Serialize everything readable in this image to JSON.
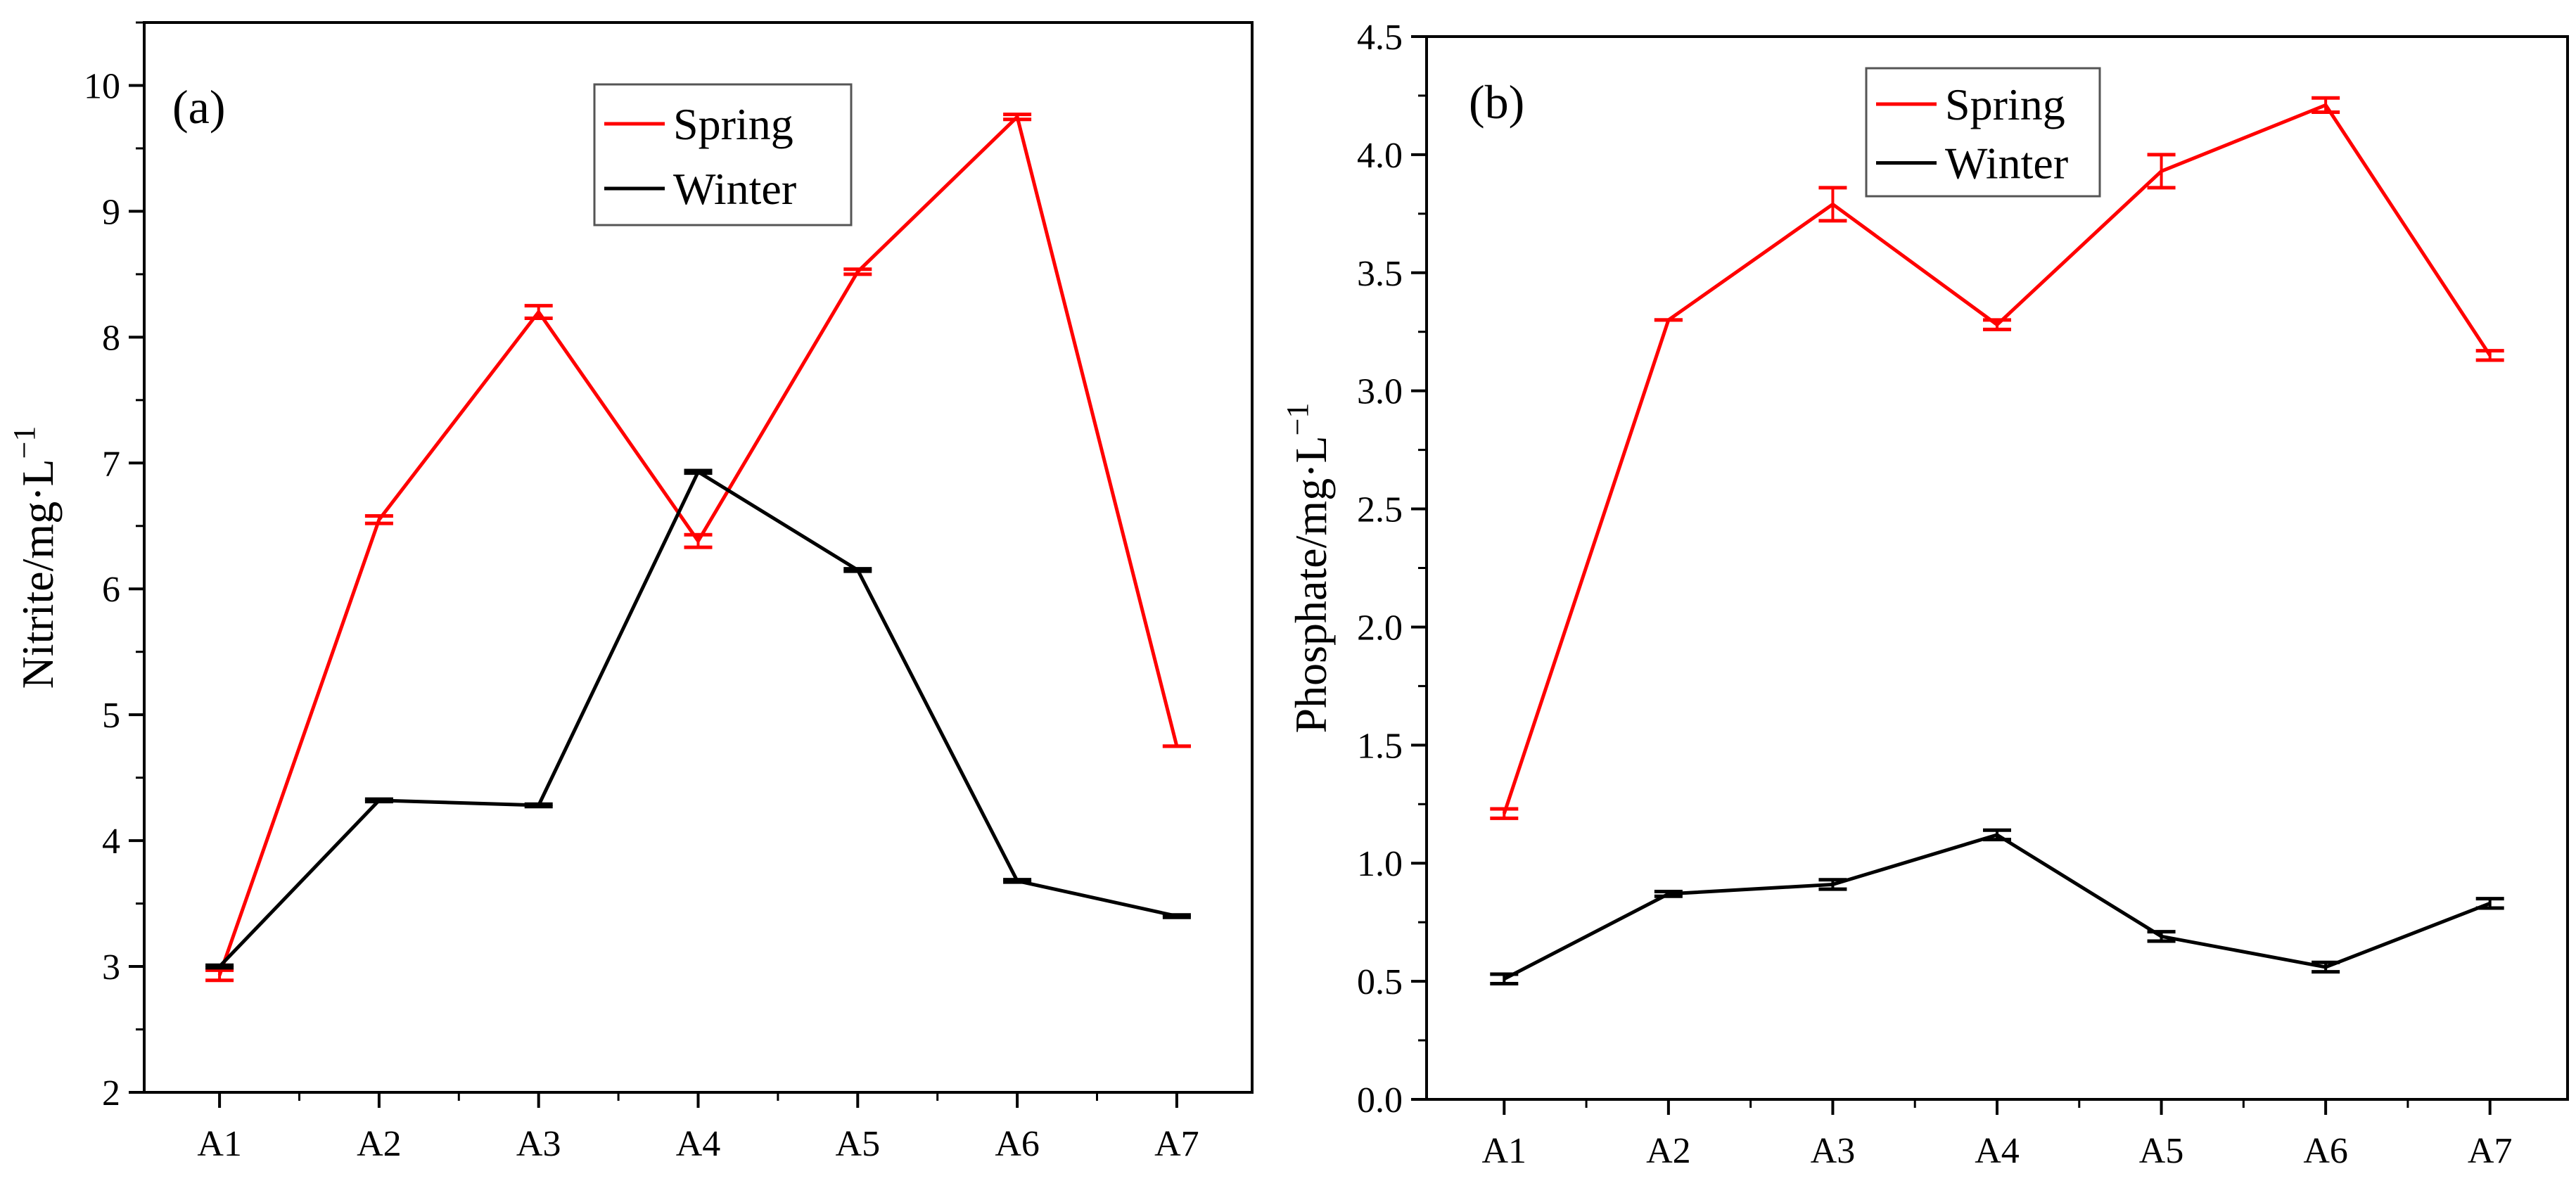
{
  "colors": {
    "spring": "#ff0000",
    "winter": "#000000",
    "axis": "#000000",
    "background": "#ffffff"
  },
  "chart_data": [
    {
      "type": "line",
      "panel_label": "(a)",
      "categories": [
        "A1",
        "A2",
        "A3",
        "A4",
        "A5",
        "A6",
        "A7"
      ],
      "ylabel": {
        "text": "Nitrite/mg·L",
        "sup": "−1"
      },
      "xlabel": "",
      "ylim": [
        2,
        10.5
      ],
      "yticks": [
        2,
        3,
        4,
        5,
        6,
        7,
        8,
        9,
        10
      ],
      "ytick_labels": [
        "2",
        "3",
        "4",
        "5",
        "6",
        "7",
        "8",
        "9",
        "10"
      ],
      "legend": {
        "position": "top-right"
      },
      "series": [
        {
          "name": "Spring",
          "color": "#ff0000",
          "values": [
            2.93,
            6.55,
            8.2,
            6.38,
            8.52,
            9.75,
            4.75
          ],
          "errors": [
            0.04,
            0.03,
            0.05,
            0.05,
            0.02,
            0.02,
            0.0
          ]
        },
        {
          "name": "Winter",
          "color": "#000000",
          "values": [
            3.0,
            4.32,
            4.28,
            6.93,
            6.15,
            3.68,
            3.4
          ],
          "errors": [
            0.01,
            0.01,
            0.01,
            0.01,
            0.01,
            0.01,
            0.01
          ]
        }
      ]
    },
    {
      "type": "line",
      "panel_label": "(b)",
      "categories": [
        "A1",
        "A2",
        "A3",
        "A4",
        "A5",
        "A6",
        "A7"
      ],
      "ylabel": {
        "text": "Phosphate/mg·L",
        "sup": "−1"
      },
      "xlabel": "",
      "ylim": [
        0,
        4.5
      ],
      "yticks": [
        0,
        0.5,
        1,
        1.5,
        2,
        2.5,
        3,
        3.5,
        4,
        4.5
      ],
      "ytick_labels": [
        "0.0",
        "0.5",
        "1.0",
        "1.5",
        "2.0",
        "2.5",
        "3.0",
        "3.5",
        "4.0",
        "4.5"
      ],
      "legend": {
        "position": "top-center"
      },
      "series": [
        {
          "name": "Spring",
          "color": "#ff0000",
          "values": [
            1.21,
            3.3,
            3.79,
            3.28,
            3.93,
            4.21,
            3.15
          ],
          "errors": [
            0.02,
            0.0,
            0.07,
            0.02,
            0.07,
            0.03,
            0.02
          ]
        },
        {
          "name": "Winter",
          "color": "#000000",
          "values": [
            0.51,
            0.87,
            0.91,
            1.12,
            0.69,
            0.56,
            0.83
          ],
          "errors": [
            0.02,
            0.01,
            0.02,
            0.02,
            0.02,
            0.02,
            0.02
          ]
        }
      ]
    }
  ]
}
